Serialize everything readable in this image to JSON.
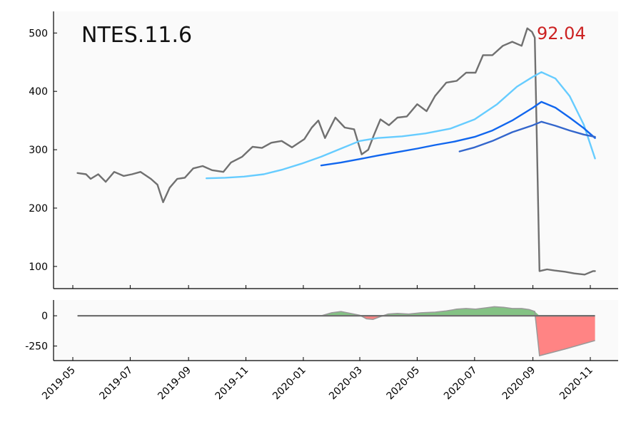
{
  "chart_data": {
    "type": "line",
    "title": "NTES.11.6",
    "last_value_label": "92.04",
    "colors": {
      "price": "#707070",
      "ma_short": "#66ccff",
      "ma_mid": "#1166ee",
      "ma_long": "#3366cc",
      "last_value": "#cc2222",
      "pos_fill": "#77bb77",
      "neg_fill": "#ff7777",
      "baseline": "#707070",
      "panel_bg": "#fafafa"
    },
    "x_ticks": [
      "2019-05",
      "2019-07",
      "2019-09",
      "2019-11",
      "2020-01",
      "2020-03",
      "2020-05",
      "2020-07",
      "2020-09",
      "2020-11"
    ],
    "main_panel": {
      "ylim": [
        62,
        537
      ],
      "y_ticks": [
        100,
        200,
        300,
        400,
        500
      ],
      "series": [
        {
          "key": "price",
          "x": [
            "2019-05-06",
            "2019-05-15",
            "2019-05-20",
            "2019-05-28",
            "2019-06-05",
            "2019-06-14",
            "2019-06-24",
            "2019-07-03",
            "2019-07-12",
            "2019-07-23",
            "2019-07-30",
            "2019-08-05",
            "2019-08-12",
            "2019-08-20",
            "2019-08-28",
            "2019-09-06",
            "2019-09-16",
            "2019-09-26",
            "2019-10-08",
            "2019-10-16",
            "2019-10-28",
            "2019-11-08",
            "2019-11-18",
            "2019-11-28",
            "2019-12-09",
            "2019-12-20",
            "2020-01-02",
            "2020-01-10",
            "2020-01-17",
            "2020-01-24",
            "2020-02-04",
            "2020-02-14",
            "2020-02-24",
            "2020-03-03",
            "2020-03-10",
            "2020-03-16",
            "2020-03-23",
            "2020-04-01",
            "2020-04-10",
            "2020-04-20",
            "2020-05-01",
            "2020-05-11",
            "2020-05-20",
            "2020-06-01",
            "2020-06-12",
            "2020-06-22",
            "2020-07-02",
            "2020-07-10",
            "2020-07-20",
            "2020-07-31",
            "2020-08-10",
            "2020-08-20",
            "2020-08-26",
            "2020-08-31",
            "2020-09-03",
            "2020-09-08",
            "2020-09-16",
            "2020-09-24",
            "2020-10-05",
            "2020-10-15",
            "2020-10-26",
            "2020-11-04",
            "2020-11-06"
          ],
          "values": [
            260,
            258,
            250,
            258,
            245,
            262,
            255,
            258,
            262,
            250,
            240,
            210,
            235,
            250,
            252,
            268,
            272,
            265,
            262,
            278,
            288,
            305,
            303,
            312,
            315,
            304,
            318,
            338,
            350,
            320,
            355,
            338,
            335,
            292,
            300,
            325,
            352,
            342,
            355,
            357,
            378,
            366,
            392,
            415,
            418,
            432,
            432,
            462,
            462,
            478,
            485,
            478,
            508,
            502,
            492,
            92,
            95,
            93,
            91,
            88,
            86,
            92,
            92
          ]
        },
        {
          "key": "ma_short",
          "x": [
            "2019-09-20",
            "2019-10-10",
            "2019-10-30",
            "2019-11-20",
            "2019-12-10",
            "2019-12-30",
            "2020-01-20",
            "2020-02-10",
            "2020-03-01",
            "2020-03-20",
            "2020-04-15",
            "2020-05-10",
            "2020-06-05",
            "2020-07-01",
            "2020-07-25",
            "2020-08-15",
            "2020-09-01",
            "2020-09-10",
            "2020-09-25",
            "2020-10-10",
            "2020-10-25",
            "2020-11-06"
          ],
          "values": [
            251,
            252,
            254,
            258,
            266,
            276,
            288,
            302,
            315,
            320,
            323,
            328,
            336,
            352,
            378,
            408,
            425,
            433,
            422,
            392,
            343,
            285
          ]
        },
        {
          "key": "ma_mid",
          "x": [
            "2020-01-20",
            "2020-02-10",
            "2020-03-01",
            "2020-03-20",
            "2020-04-10",
            "2020-05-01",
            "2020-05-20",
            "2020-06-10",
            "2020-07-01",
            "2020-07-20",
            "2020-08-10",
            "2020-09-01",
            "2020-09-10",
            "2020-09-25",
            "2020-10-10",
            "2020-10-25",
            "2020-11-06"
          ],
          "values": [
            273,
            278,
            284,
            290,
            296,
            302,
            308,
            314,
            322,
            333,
            350,
            372,
            382,
            372,
            355,
            337,
            320
          ]
        },
        {
          "key": "ma_long",
          "x": [
            "2020-06-15",
            "2020-07-01",
            "2020-07-20",
            "2020-08-10",
            "2020-09-01",
            "2020-09-10",
            "2020-09-25",
            "2020-10-10",
            "2020-10-25",
            "2020-11-06"
          ],
          "values": [
            297,
            304,
            315,
            330,
            342,
            348,
            341,
            333,
            326,
            322
          ]
        }
      ]
    },
    "sub_panel": {
      "ylim": [
        -370,
        130
      ],
      "y_ticks": [
        0,
        -250
      ],
      "x": [
        "2019-05-06",
        "2020-01-20",
        "2020-01-31",
        "2020-02-10",
        "2020-02-20",
        "2020-03-01",
        "2020-03-08",
        "2020-03-15",
        "2020-03-22",
        "2020-03-31",
        "2020-04-10",
        "2020-04-22",
        "2020-05-05",
        "2020-05-20",
        "2020-06-01",
        "2020-06-12",
        "2020-06-22",
        "2020-07-02",
        "2020-07-12",
        "2020-07-22",
        "2020-08-01",
        "2020-08-10",
        "2020-08-20",
        "2020-08-28",
        "2020-09-03",
        "2020-09-08",
        "2020-10-05",
        "2020-11-06"
      ],
      "values": [
        0,
        0,
        25,
        35,
        20,
        5,
        -25,
        -30,
        -10,
        15,
        20,
        15,
        25,
        30,
        40,
        55,
        60,
        55,
        65,
        75,
        70,
        60,
        60,
        52,
        35,
        -330,
        -275,
        -205
      ]
    }
  }
}
